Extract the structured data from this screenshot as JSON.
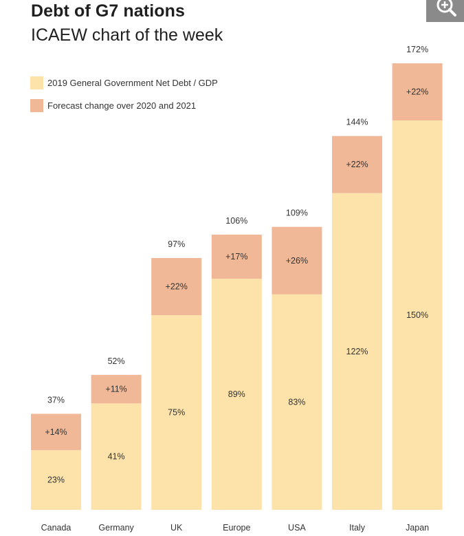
{
  "chart_title": "Debt of G7 nations",
  "chart_subtitle": "ICAEW chart of the week",
  "colors": {
    "base": "#fde3aa",
    "change": "#f0b896",
    "zoom_bg": "#8a8a8a"
  },
  "legend": {
    "base_label": "2019 General Government Net Debt / GDP",
    "change_label": "Forecast change over 2020 and 2021"
  },
  "chart_data": {
    "type": "bar",
    "stacked": true,
    "title": "Debt of G7 nations",
    "subtitle": "ICAEW chart of the week",
    "xlabel": "",
    "ylabel": "",
    "ylim": [
      0,
      172
    ],
    "categories": [
      "Canada",
      "Germany",
      "UK",
      "Europe",
      "USA",
      "Italy",
      "Japan"
    ],
    "series": [
      {
        "name": "2019 General Government Net Debt / GDP",
        "values": [
          23,
          41,
          75,
          89,
          83,
          122,
          150
        ],
        "labels": [
          "23%",
          "41%",
          "75%",
          "89%",
          "83%",
          "122%",
          "150%"
        ]
      },
      {
        "name": "Forecast change over 2020 and 2021",
        "values": [
          14,
          11,
          22,
          17,
          26,
          22,
          22
        ],
        "labels": [
          "+14%",
          "+11%",
          "+22%",
          "+17%",
          "+26%",
          "+22%",
          "+22%"
        ]
      }
    ],
    "totals": [
      37,
      52,
      97,
      106,
      109,
      144,
      172
    ],
    "total_labels": [
      "37%",
      "52%",
      "97%",
      "106%",
      "109%",
      "144%",
      "172%"
    ]
  }
}
